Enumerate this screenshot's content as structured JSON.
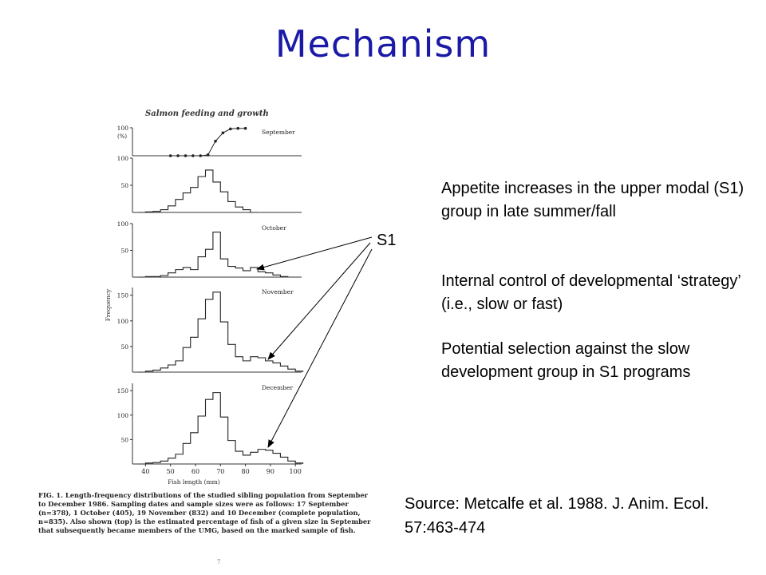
{
  "slide": {
    "title": "Mechanism",
    "bullets": [
      "Appetite increases in the upper modal (S1) group in late summer/fall",
      "Internal control of developmental ‘strategy’ (i.e., slow or fast)",
      "Potential selection against the slow development group in S1 programs"
    ],
    "source": "Source: Metcalfe et al. 1988. J. Anim. Ecol. 57:463-474",
    "pointer_label": "S1"
  },
  "figure": {
    "title": "Salmon feeding and growth",
    "caption": "FIG. 1. Length-frequency distributions of the studied sibling population from September to December 1986. Sampling dates and sample sizes were as follows: 17 September (n=378), 1 October (405), 19 November (832) and 10 December (complete population, n=835). Also shown (top) is the estimated percentage of fish of a given size in September that subsequently became members of the UMG, based on the marked sample of fish.",
    "page_mark": "7"
  },
  "chart_data": [
    {
      "type": "line",
      "panel": "September (%)",
      "label": "September",
      "ylabel": "(%)",
      "x": [
        50,
        53,
        56,
        59,
        62,
        65,
        68,
        71,
        74,
        77,
        80
      ],
      "y": [
        0,
        0,
        0,
        0,
        0,
        3,
        52,
        82,
        96,
        98,
        98
      ],
      "ylim": [
        0,
        100
      ],
      "yticks": [
        100
      ]
    },
    {
      "type": "area",
      "panel": "September",
      "xlabel": "",
      "x": [
        37,
        40,
        43,
        46,
        49,
        52,
        55,
        58,
        61,
        64,
        67,
        70,
        73,
        76,
        79,
        82
      ],
      "y": [
        0,
        1,
        2,
        5,
        12,
        24,
        36,
        46,
        66,
        78,
        56,
        38,
        20,
        10,
        5,
        0
      ],
      "ylim": [
        0,
        100
      ],
      "yticks": [
        100,
        50
      ]
    },
    {
      "type": "area",
      "panel": "October",
      "label": "October",
      "x": [
        37,
        40,
        43,
        46,
        49,
        52,
        55,
        58,
        61,
        64,
        67,
        70,
        73,
        76,
        79,
        82,
        85,
        88,
        91,
        94
      ],
      "y": [
        0,
        1,
        1,
        3,
        8,
        14,
        18,
        14,
        38,
        52,
        84,
        34,
        20,
        17,
        12,
        18,
        10,
        8,
        4,
        1
      ],
      "ylim": [
        0,
        100
      ],
      "yticks": [
        100,
        50
      ]
    },
    {
      "type": "area",
      "panel": "November",
      "label": "November",
      "x": [
        37,
        40,
        43,
        46,
        49,
        52,
        55,
        58,
        61,
        64,
        67,
        70,
        73,
        76,
        79,
        82,
        85,
        88,
        91,
        94,
        97,
        100
      ],
      "y": [
        0,
        2,
        4,
        8,
        14,
        22,
        48,
        68,
        104,
        142,
        156,
        98,
        54,
        30,
        22,
        30,
        28,
        22,
        18,
        12,
        6,
        2
      ],
      "ylim": [
        0,
        165
      ],
      "yticks": [
        150,
        100,
        50
      ]
    },
    {
      "type": "area",
      "panel": "December",
      "label": "December",
      "x": [
        37,
        40,
        43,
        46,
        49,
        52,
        55,
        58,
        61,
        64,
        67,
        70,
        73,
        76,
        79,
        82,
        85,
        88,
        91,
        94,
        97,
        100
      ],
      "y": [
        0,
        2,
        3,
        6,
        12,
        20,
        42,
        64,
        98,
        132,
        146,
        96,
        48,
        26,
        18,
        24,
        30,
        28,
        22,
        14,
        6,
        2
      ],
      "ylim": [
        0,
        165
      ],
      "yticks": [
        150,
        100,
        50
      ],
      "xlabel": "Fish length (mm)",
      "xticks": [
        40,
        50,
        60,
        70,
        80,
        90,
        100
      ]
    }
  ],
  "frequency_label": "Frequency"
}
